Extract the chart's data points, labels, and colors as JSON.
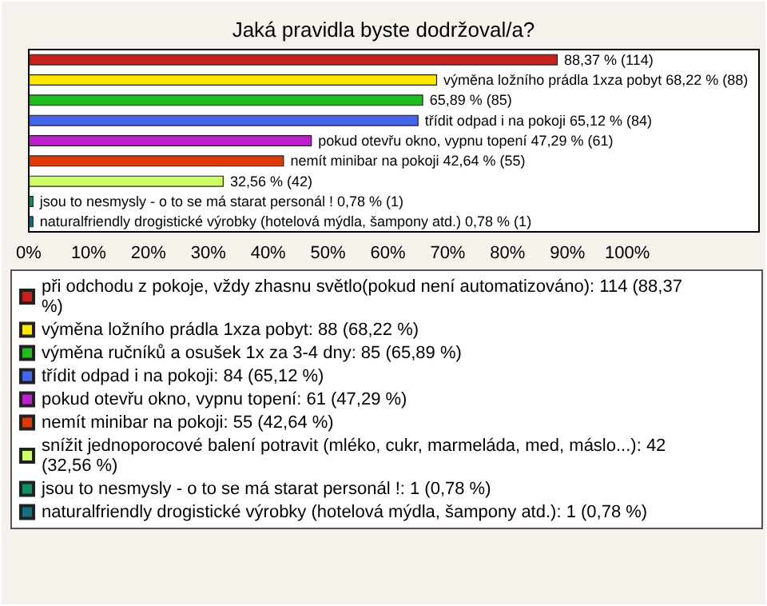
{
  "chart_data": {
    "type": "bar",
    "orientation": "horizontal",
    "title": "Jaká pravidla byste dodržoval/a?",
    "categories": [
      null,
      null,
      null,
      null,
      null,
      null,
      null,
      null,
      null
    ],
    "series": [
      {
        "name": "při odchodu z pokoje, vždy zhasnu světlo(pokud není automatizováno): 114 (88,37 %)",
        "color": "#c8201a",
        "values": [
          88.37,
          null,
          null,
          null,
          null,
          null,
          null,
          null,
          null
        ],
        "value_labels": [
          "88,37 % (114)",
          null,
          null,
          null,
          null,
          null,
          null,
          null,
          null
        ]
      },
      {
        "name": "výměna ložního prádla 1xza pobyt: 88 (68,22 %)",
        "color": "#ffe800",
        "values": [
          null,
          68.22,
          null,
          null,
          null,
          null,
          null,
          null,
          null
        ],
        "value_labels": [
          null,
          "výměna ložního prádla 1xza pobyt 68,22 % (88)",
          null,
          null,
          null,
          null,
          null,
          null,
          null
        ]
      },
      {
        "name": "výměna ručníků a osušek 1x za 3-4 dny: 85 (65,89 %)",
        "color": "#22bb22",
        "values": [
          null,
          null,
          65.89,
          null,
          null,
          null,
          null,
          null,
          null
        ],
        "value_labels": [
          null,
          null,
          "65,89 % (85)",
          null,
          null,
          null,
          null,
          null,
          null
        ]
      },
      {
        "name": "třídit odpad i na pokoji: 84 (65,12 %)",
        "color": "#4466ee",
        "values": [
          null,
          null,
          null,
          65.12,
          null,
          null,
          null,
          null,
          null
        ],
        "value_labels": [
          null,
          null,
          null,
          "třídit odpad i na pokoji 65,12 % (84)",
          null,
          null,
          null,
          null,
          null
        ]
      },
      {
        "name": "pokud otevřu okno, vypnu topení: 61 (47,29 %)",
        "color": "#bb22cc",
        "values": [
          null,
          null,
          null,
          null,
          47.29,
          null,
          null,
          null,
          null
        ],
        "value_labels": [
          null,
          null,
          null,
          null,
          "pokud otevřu okno, vypnu topení 47,29 % (61)",
          null,
          null,
          null,
          null
        ]
      },
      {
        "name": "nemít minibar na pokoji: 55 (42,64 %)",
        "color": "#dd3a0a",
        "values": [
          null,
          null,
          null,
          null,
          null,
          42.64,
          null,
          null,
          null
        ],
        "value_labels": [
          null,
          null,
          null,
          null,
          null,
          "nemít minibar na pokoji 42,64 % (55)",
          null,
          null,
          null
        ]
      },
      {
        "name": "snížit jednoporocové balení potravit (mléko, cukr, marmeláda, med, máslo...): 42 (32,56 %)",
        "color": "#ccff66",
        "values": [
          null,
          null,
          null,
          null,
          null,
          null,
          32.56,
          null,
          null
        ],
        "value_labels": [
          null,
          null,
          null,
          null,
          null,
          null,
          "32,56 % (42)",
          null,
          null
        ]
      },
      {
        "name": "jsou to nesmysly - o to se má starat personál !: 1 (0,78 %)",
        "color": "#149060",
        "values": [
          null,
          null,
          null,
          null,
          null,
          null,
          null,
          0.78,
          null
        ],
        "value_labels": [
          null,
          null,
          null,
          null,
          null,
          null,
          null,
          "jsou to nesmysly - o to se má starat personál ! 0,78 % (1)",
          null
        ]
      },
      {
        "name": "naturalfriendly drogistické výrobky (hotelová mýdla, šampony atd.): 1 (0,78 %)",
        "color": "#127080",
        "values": [
          null,
          null,
          null,
          null,
          null,
          null,
          null,
          null,
          0.78
        ],
        "value_labels": [
          null,
          null,
          null,
          null,
          null,
          null,
          null,
          null,
          "naturalfriendly drogistické výrobky (hotelová mýdla, šampony atd.) 0,78 % (1)"
        ]
      }
    ],
    "xlim": [
      0,
      122
    ],
    "xticks": [
      {
        "value": 0,
        "label": "0%"
      },
      {
        "value": 10,
        "label": "10%"
      },
      {
        "value": 20,
        "label": "20%"
      },
      {
        "value": 30,
        "label": "30%"
      },
      {
        "value": 40,
        "label": "40%"
      },
      {
        "value": 50,
        "label": "50%"
      },
      {
        "value": 60,
        "label": "60%"
      },
      {
        "value": 70,
        "label": "70%"
      },
      {
        "value": 80,
        "label": "80%"
      },
      {
        "value": 90,
        "label": "90%"
      },
      {
        "value": 100,
        "label": "100%"
      }
    ],
    "tick_labels": "x",
    "legend": "bottom",
    "stacked": true
  }
}
